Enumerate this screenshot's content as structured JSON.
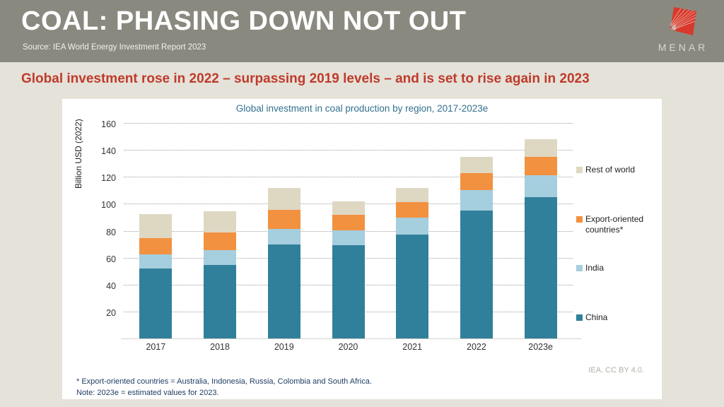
{
  "header": {
    "title": "COAL: PHASING DOWN NOT OUT",
    "source": "Source: IEA World Energy Investment Report 2023",
    "logo_text": "MENAR",
    "logo_color": "#d8392c"
  },
  "headline": "Global investment rose in 2022 – surpassing 2019 levels – and is set to rise again in 2023",
  "chart_data": {
    "type": "bar",
    "stacked": true,
    "title": "Global investment in coal production by region, 2017-2023e",
    "ylabel": "Billion USD (2022)",
    "xlabel": "",
    "categories": [
      "2017",
      "2018",
      "2019",
      "2020",
      "2021",
      "2022",
      "2023e"
    ],
    "series": [
      {
        "name": "China",
        "color": "#31809b",
        "values": [
          52,
          54.5,
          70,
          69.5,
          77,
          95,
          105
        ]
      },
      {
        "name": "India",
        "color": "#a5cede",
        "values": [
          10.5,
          11,
          11.5,
          11,
          12.5,
          15,
          16
        ]
      },
      {
        "name": "Export-oriented countries*",
        "color": "#f29140",
        "values": [
          12,
          13,
          14,
          11.5,
          12,
          13,
          14
        ]
      },
      {
        "name": "Rest of world",
        "color": "#ded8c3",
        "values": [
          18,
          16,
          16.5,
          10,
          10.5,
          12,
          13
        ]
      }
    ],
    "totals": [
      92.5,
      94.5,
      112,
      102,
      112,
      135,
      148
    ],
    "yticks": [
      20,
      40,
      60,
      80,
      100,
      120,
      140,
      160
    ],
    "ylim": [
      0,
      164
    ],
    "grid": "dotted-horizontal",
    "legend_position": "right"
  },
  "legend": [
    {
      "label": "Rest of world",
      "color": "#ded8c3"
    },
    {
      "label": "Export-oriented countries*",
      "color": "#f29140"
    },
    {
      "label": "India",
      "color": "#a5cede"
    },
    {
      "label": "China",
      "color": "#31809b"
    }
  ],
  "attribution": "IEA. CC BY 4.0.",
  "notes": [
    "* Export-oriented countries = Australia, Indonesia, Russia, Colombia and South Africa.",
    "Note:  2023e = estimated values for 2023."
  ],
  "colors": {
    "header_bg": "#8a897f",
    "body_bg": "#e5e2d9",
    "card_bg": "#ffffff",
    "headline_red": "#bf3a2b",
    "chart_title_blue": "#33708f",
    "note_navy": "#1f3e63"
  }
}
